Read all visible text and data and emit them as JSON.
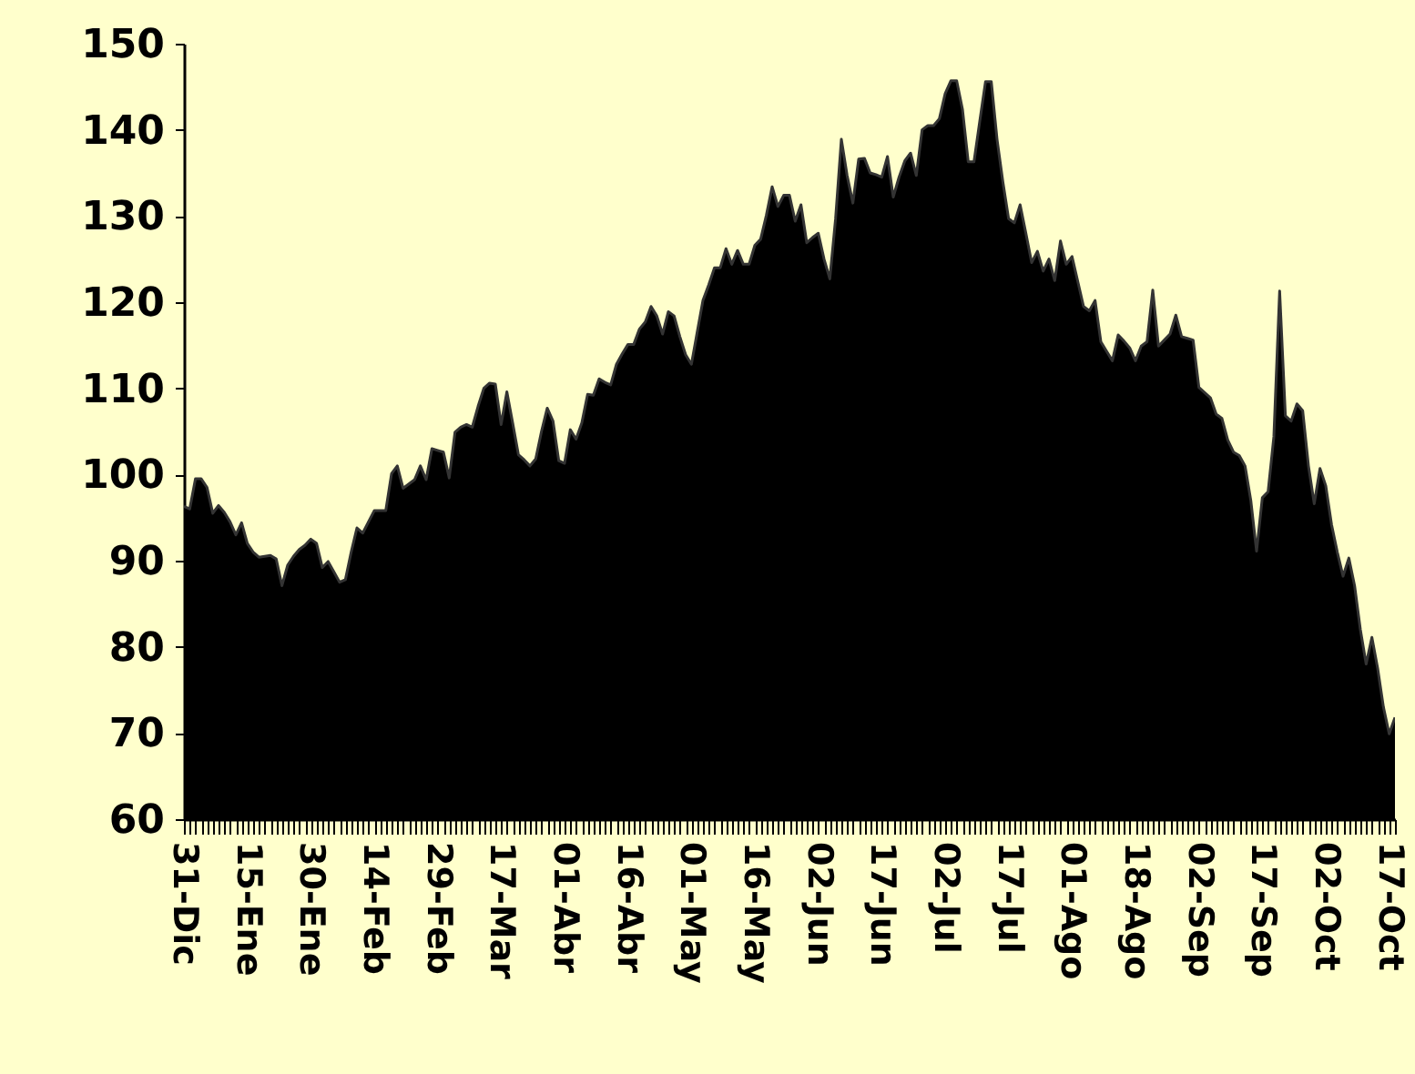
{
  "chart_data": {
    "type": "area",
    "color": "#000000",
    "categories": [
      "31-Dic",
      null,
      null,
      null,
      null,
      null,
      null,
      null,
      null,
      null,
      null,
      "15-Ene",
      null,
      null,
      null,
      null,
      null,
      null,
      null,
      null,
      null,
      null,
      "30-Ene",
      null,
      null,
      null,
      null,
      null,
      null,
      null,
      null,
      null,
      null,
      "14-Feb",
      null,
      null,
      null,
      null,
      null,
      null,
      null,
      null,
      null,
      null,
      "29-Feb",
      null,
      null,
      null,
      null,
      null,
      null,
      null,
      null,
      null,
      null,
      "17-Mar",
      null,
      null,
      null,
      null,
      null,
      null,
      null,
      null,
      null,
      null,
      "01-Abr",
      null,
      null,
      null,
      null,
      null,
      null,
      null,
      null,
      null,
      null,
      "16-Abr",
      null,
      null,
      null,
      null,
      null,
      null,
      null,
      null,
      null,
      null,
      "01-May",
      null,
      null,
      null,
      null,
      null,
      null,
      null,
      null,
      null,
      null,
      "16-May",
      null,
      null,
      null,
      null,
      null,
      null,
      null,
      null,
      null,
      null,
      "02-Jun",
      null,
      null,
      null,
      null,
      null,
      null,
      null,
      null,
      null,
      null,
      "17-Jun",
      null,
      null,
      null,
      null,
      null,
      null,
      null,
      null,
      null,
      null,
      "02-Jul",
      null,
      null,
      null,
      null,
      null,
      null,
      null,
      null,
      null,
      null,
      "17-Jul",
      null,
      null,
      null,
      null,
      null,
      null,
      null,
      null,
      null,
      null,
      "01-Ago",
      null,
      null,
      null,
      null,
      null,
      null,
      null,
      null,
      null,
      null,
      "18-Ago",
      null,
      null,
      null,
      null,
      null,
      null,
      null,
      null,
      null,
      null,
      "02-Sep",
      null,
      null,
      null,
      null,
      null,
      null,
      null,
      null,
      null,
      null,
      "17-Sep",
      null,
      null,
      null,
      null,
      null,
      null,
      null,
      null,
      null,
      null,
      "02-Oct",
      null,
      null,
      null,
      null,
      null,
      null,
      null,
      null,
      null,
      null,
      "17-Oct",
      null
    ],
    "values": [
      96.3,
      96,
      99.5,
      99.5,
      98.5,
      95.5,
      96.4,
      95.6,
      94.5,
      93,
      94.4,
      92,
      91,
      90.4,
      90.5,
      90.6,
      90.2,
      87.1,
      89.5,
      90.5,
      91.3,
      91.8,
      92.5,
      92,
      89.2,
      89.9,
      88.7,
      87.5,
      87.8,
      91,
      93.8,
      93.2,
      94.5,
      95.8,
      95.8,
      95.8,
      100.1,
      101,
      98.4,
      98.9,
      99.4,
      101,
      99.4,
      103,
      102.8,
      102.6,
      99.6,
      104.9,
      105.5,
      105.8,
      105.5,
      107.9,
      110,
      110.6,
      110.5,
      105.8,
      109.6,
      106,
      102.3,
      101.7,
      101,
      101.8,
      105,
      107.7,
      106.2,
      101.6,
      101.3,
      105.2,
      104.1,
      106,
      109.3,
      109.2,
      111.1,
      110.7,
      110.4,
      112.8,
      114,
      115.1,
      115.1,
      116.9,
      117.7,
      119.5,
      118.4,
      116.3,
      118.9,
      118.4,
      116,
      113.9,
      112.8,
      116.5,
      120.2,
      122,
      124,
      124,
      126.2,
      124.4,
      126,
      124.4,
      124.4,
      126.6,
      127.3,
      130.1,
      133.4,
      131.1,
      132.4,
      132.4,
      129.4,
      131.3,
      126.9,
      127.5,
      128,
      125,
      122.7,
      129.7,
      138.9,
      134.7,
      131.5,
      136.6,
      136.7,
      135,
      134.8,
      134.5,
      136.9,
      132.2,
      134.5,
      136.4,
      137.3,
      134.7,
      140,
      140.5,
      140.5,
      141.3,
      144.2,
      145.7,
      145.7,
      142.4,
      136.3,
      136.3,
      141,
      145.6,
      145.6,
      138.9,
      134,
      129.7,
      129.2,
      131.3,
      128,
      124.6,
      125.9,
      123.6,
      125,
      122.5,
      127.1,
      124.4,
      125.3,
      122.4,
      119.5,
      119,
      120.2,
      115.4,
      114.3,
      113.2,
      116.2,
      115.5,
      114.7,
      113.2,
      114.9,
      115.4,
      121.4,
      114.9,
      115.6,
      116.3,
      118.5,
      116,
      115.8,
      115.6,
      110.1,
      109.5,
      108.9,
      107,
      106.5,
      104,
      102.6,
      102.2,
      101,
      97,
      91.1,
      97.3,
      98,
      104.4,
      121.3,
      106.8,
      106.2,
      108.2,
      107.4,
      101,
      96.6,
      100.7,
      98.7,
      94.2,
      91,
      88.2,
      90.3,
      87.1,
      82,
      78,
      81.1,
      77.5,
      73,
      69.9,
      71.8
    ],
    "ylim": [
      60,
      150
    ],
    "yticks": [
      60,
      70,
      80,
      90,
      100,
      110,
      120,
      130,
      140,
      150
    ],
    "grid": false,
    "legend": false
  }
}
